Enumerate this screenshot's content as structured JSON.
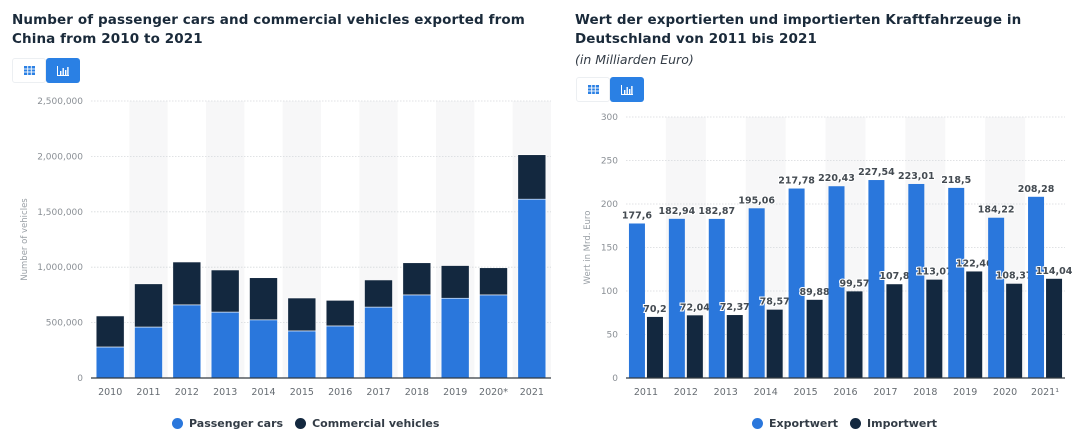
{
  "colors": {
    "primary": "#2a77dc",
    "secondary": "#13283f",
    "toggle_active": "#2a80e4",
    "band": "#f7f7f8",
    "grid": "#d6d9dc",
    "axis": "#333a40"
  },
  "toggles": {
    "table_icon": "table-icon",
    "chart_icon": "bar-chart-icon"
  },
  "chart_data": [
    {
      "type": "bar",
      "stacked": true,
      "title": "Number of passenger cars and commercial vehicles exported from China from 2010 to 2021",
      "xlabel": "",
      "ylabel": "Number of vehicles",
      "ylim": [
        0,
        2500000
      ],
      "yticks": [
        0,
        500000,
        1000000,
        1500000,
        2000000,
        2500000
      ],
      "ytick_labels": [
        "0",
        "500,000",
        "1,000,000",
        "1,500,000",
        "2,000,000",
        "2,500,000"
      ],
      "grid": true,
      "legend": "bottom-center",
      "categories": [
        "2010",
        "2011",
        "2012",
        "2013",
        "2014",
        "2015",
        "2016",
        "2017",
        "2018",
        "2019",
        "2020*",
        "2021"
      ],
      "series": [
        {
          "name": "Passenger cars",
          "values": [
            280000,
            460000,
            660000,
            595000,
            525000,
            425000,
            470000,
            640000,
            750000,
            720000,
            750000,
            1614000
          ]
        },
        {
          "name": "Commercial vehicles",
          "values": [
            280000,
            390000,
            387000,
            380000,
            380000,
            297000,
            231000,
            245000,
            290000,
            295000,
            245000,
            401000
          ]
        }
      ]
    },
    {
      "type": "bar",
      "stacked": false,
      "title": "Wert der exportierten und importierten Kraftfahrzeuge in Deutschland von 2011 bis 2021",
      "subtitle": "(in Milliarden Euro)",
      "xlabel": "",
      "ylabel": "Wert in Mrd. Euro",
      "ylim": [
        0,
        300
      ],
      "yticks": [
        0,
        50,
        100,
        150,
        200,
        250,
        300
      ],
      "ytick_labels": [
        "0",
        "50",
        "100",
        "150",
        "200",
        "250",
        "300"
      ],
      "grid": true,
      "legend": "bottom-center",
      "categories": [
        "2011",
        "2012",
        "2013",
        "2014",
        "2015",
        "2016",
        "2017",
        "2018",
        "2019",
        "2020",
        "2021¹"
      ],
      "series": [
        {
          "name": "Exportwert",
          "values": [
            177.6,
            182.94,
            182.87,
            195.06,
            217.78,
            220.43,
            227.54,
            223.01,
            218.5,
            184.22,
            208.28
          ],
          "labels": [
            "177,6",
            "182,94",
            "182,87",
            "195,06",
            "217,78",
            "220,43",
            "227,54",
            "223,01",
            "218,5",
            "184,22",
            "208,28"
          ]
        },
        {
          "name": "Importwert",
          "values": [
            70.2,
            72.04,
            72.37,
            78.57,
            89.88,
            99.57,
            107.8,
            113.07,
            122.46,
            108.37,
            114.04
          ],
          "labels": [
            "70,2",
            "72,04",
            "72,37",
            "78,57",
            "89,88",
            "99,57",
            "107,8",
            "113,07",
            "122,46",
            "108,37",
            "114,04"
          ]
        }
      ]
    }
  ]
}
